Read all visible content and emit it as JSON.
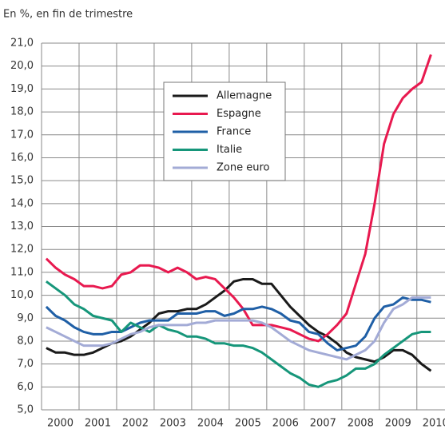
{
  "chart_data": {
    "type": "line",
    "title": "En %, en fin de trimestre",
    "x": [
      2000.125,
      2000.375,
      2000.625,
      2000.875,
      2001.125,
      2001.375,
      2001.625,
      2001.875,
      2002.125,
      2002.375,
      2002.625,
      2002.875,
      2003.125,
      2003.375,
      2003.625,
      2003.875,
      2004.125,
      2004.375,
      2004.625,
      2004.875,
      2005.125,
      2005.375,
      2005.625,
      2005.875,
      2006.125,
      2006.375,
      2006.625,
      2006.875,
      2007.125,
      2007.375,
      2007.625,
      2007.875,
      2008.125,
      2008.375,
      2008.625,
      2008.875,
      2009.125,
      2009.375,
      2009.625,
      2009.875,
      2010.125,
      2010.375
    ],
    "series": [
      {
        "name": "Allemagne",
        "color": "#1a1a1a",
        "values": [
          7.7,
          7.5,
          7.5,
          7.4,
          7.4,
          7.5,
          7.7,
          7.9,
          8.0,
          8.2,
          8.5,
          8.8,
          9.2,
          9.3,
          9.3,
          9.4,
          9.4,
          9.6,
          9.9,
          10.2,
          10.6,
          10.7,
          10.7,
          10.5,
          10.5,
          10.0,
          9.5,
          9.1,
          8.7,
          8.4,
          8.2,
          7.9,
          7.5,
          7.3,
          7.2,
          7.1,
          7.3,
          7.6,
          7.6,
          7.4,
          7.0,
          6.7
        ]
      },
      {
        "name": "Espagne",
        "color": "#e8194f",
        "values": [
          11.6,
          11.2,
          10.9,
          10.7,
          10.4,
          10.4,
          10.3,
          10.4,
          10.9,
          11.0,
          11.3,
          11.3,
          11.2,
          11.0,
          11.2,
          11.0,
          10.7,
          10.8,
          10.7,
          10.3,
          9.9,
          9.4,
          8.7,
          8.7,
          8.7,
          8.6,
          8.5,
          8.3,
          8.1,
          8.0,
          8.3,
          8.7,
          9.2,
          10.5,
          11.8,
          14.0,
          16.6,
          17.9,
          18.6,
          19.0,
          19.3,
          20.5
        ]
      },
      {
        "name": "France",
        "color": "#1f5fa6",
        "values": [
          9.5,
          9.1,
          8.9,
          8.6,
          8.4,
          8.3,
          8.3,
          8.4,
          8.4,
          8.6,
          8.8,
          8.9,
          8.9,
          8.9,
          9.2,
          9.2,
          9.2,
          9.3,
          9.3,
          9.1,
          9.2,
          9.4,
          9.4,
          9.5,
          9.4,
          9.2,
          8.9,
          8.8,
          8.4,
          8.3,
          7.9,
          7.6,
          7.7,
          7.8,
          8.2,
          9.0,
          9.5,
          9.6,
          9.9,
          9.8,
          9.8,
          9.7
        ]
      },
      {
        "name": "Italie",
        "color": "#16967a",
        "values": [
          10.6,
          10.3,
          10.0,
          9.6,
          9.4,
          9.1,
          9.0,
          8.9,
          8.4,
          8.8,
          8.6,
          8.4,
          8.7,
          8.5,
          8.4,
          8.2,
          8.2,
          8.1,
          7.9,
          7.9,
          7.8,
          7.8,
          7.7,
          7.5,
          7.2,
          6.9,
          6.6,
          6.4,
          6.1,
          6.0,
          6.2,
          6.3,
          6.5,
          6.8,
          6.8,
          7.0,
          7.4,
          7.7,
          8.0,
          8.3,
          8.4,
          8.4
        ]
      },
      {
        "name": "Zone euro",
        "color": "#a3abd6",
        "values": [
          8.6,
          8.4,
          8.2,
          8.0,
          7.8,
          7.8,
          7.8,
          7.9,
          8.1,
          8.3,
          8.4,
          8.6,
          8.7,
          8.7,
          8.7,
          8.7,
          8.8,
          8.8,
          8.9,
          8.9,
          8.9,
          8.9,
          8.9,
          8.8,
          8.6,
          8.3,
          8.0,
          7.8,
          7.6,
          7.5,
          7.4,
          7.3,
          7.2,
          7.4,
          7.6,
          8.0,
          8.8,
          9.4,
          9.6,
          9.9,
          9.9,
          9.9
        ]
      }
    ],
    "xlim": [
      2000,
      2010.75
    ],
    "xticks": [
      {
        "value": 2000,
        "label": "2000"
      },
      {
        "value": 2001,
        "label": "2001"
      },
      {
        "value": 2002,
        "label": "2002"
      },
      {
        "value": 2003,
        "label": "2003"
      },
      {
        "value": 2004,
        "label": "2004"
      },
      {
        "value": 2005,
        "label": "2005"
      },
      {
        "value": 2006,
        "label": "2006"
      },
      {
        "value": 2007,
        "label": "2007"
      },
      {
        "value": 2008,
        "label": "2008"
      },
      {
        "value": 2009,
        "label": "2009"
      },
      {
        "value": 2010,
        "label": "2010"
      }
    ],
    "ylim": [
      5,
      21
    ],
    "yticks": [
      {
        "value": 5,
        "label": "5,0"
      },
      {
        "value": 6,
        "label": "6,0"
      },
      {
        "value": 7,
        "label": "7,0"
      },
      {
        "value": 8,
        "label": "8,0"
      },
      {
        "value": 9,
        "label": "9,0"
      },
      {
        "value": 10,
        "label": "10,0"
      },
      {
        "value": 11,
        "label": "11,0"
      },
      {
        "value": 12,
        "label": "12,0"
      },
      {
        "value": 13,
        "label": "13,0"
      },
      {
        "value": 14,
        "label": "14,0"
      },
      {
        "value": 15,
        "label": "15,0"
      },
      {
        "value": 16,
        "label": "16,0"
      },
      {
        "value": 17,
        "label": "17,0"
      },
      {
        "value": 18,
        "label": "18,0"
      },
      {
        "value": 19,
        "label": "19,0"
      },
      {
        "value": 20,
        "label": "20,0"
      },
      {
        "value": 21,
        "label": "21,0"
      }
    ],
    "grid": true
  }
}
